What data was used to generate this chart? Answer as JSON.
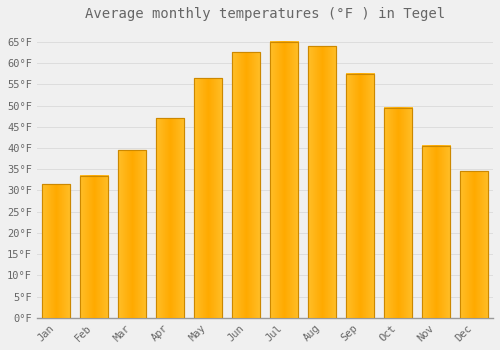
{
  "title": "Average monthly temperatures (°F ) in Tegel",
  "months": [
    "Jan",
    "Feb",
    "Mar",
    "Apr",
    "May",
    "Jun",
    "Jul",
    "Aug",
    "Sep",
    "Oct",
    "Nov",
    "Dec"
  ],
  "values": [
    31.5,
    33.5,
    39.5,
    47.0,
    56.5,
    62.5,
    65.0,
    64.0,
    57.5,
    49.5,
    40.5,
    34.5
  ],
  "bar_color": "#FFAA00",
  "bar_edge_color": "#CC8800",
  "bar_highlight_color": "#FFCC55",
  "background_color": "#F0F0F0",
  "grid_color": "#DDDDDD",
  "text_color": "#666666",
  "ylim": [
    0,
    68
  ],
  "yticks": [
    0,
    5,
    10,
    15,
    20,
    25,
    30,
    35,
    40,
    45,
    50,
    55,
    60,
    65
  ],
  "ytick_labels": [
    "0°F",
    "5°F",
    "10°F",
    "15°F",
    "20°F",
    "25°F",
    "30°F",
    "35°F",
    "40°F",
    "45°F",
    "50°F",
    "55°F",
    "60°F",
    "65°F"
  ],
  "title_fontsize": 10,
  "tick_fontsize": 7.5,
  "bar_width": 0.75
}
